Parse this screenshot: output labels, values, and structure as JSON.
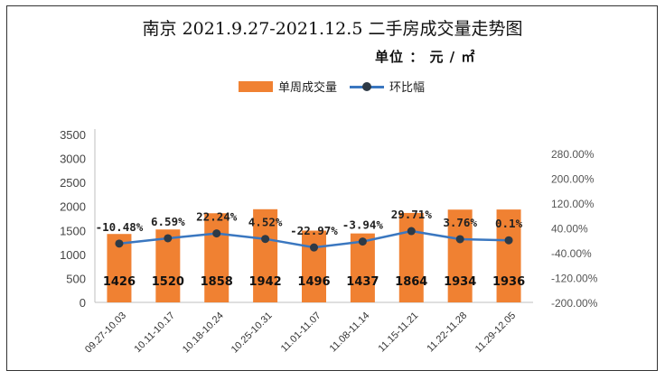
{
  "chart_data": {
    "type": "bar",
    "title": "南京 2021.9.27-2021.12.5 二手房成交量走势图",
    "unit_label": "单位 ： 元 / ㎡",
    "categories": [
      "09.27-10.03",
      "10.11-10.17",
      "10.18-10.24",
      "10.25-10.31",
      "11.01-11.07",
      "11.08-11.14",
      "11.15-11.21",
      "11.22-11.28",
      "11.29-12.05"
    ],
    "series": [
      {
        "name": "单周成交量",
        "type": "bar",
        "color": "#f08132",
        "values": [
          1426,
          1520,
          1858,
          1942,
          1496,
          1437,
          1864,
          1934,
          1936
        ]
      },
      {
        "name": "环比幅",
        "type": "line",
        "color": "#3a77c0",
        "marker_color": "#2e3a46",
        "values": [
          -10.48,
          6.59,
          22.24,
          4.52,
          -22.97,
          -3.94,
          29.71,
          3.76,
          0.1
        ],
        "labels": [
          "-10.48%",
          "6.59%",
          "22.24%",
          "4.52%",
          "-22.97%",
          "-3.94%",
          "29.71%",
          "3.76%",
          "0.1%"
        ]
      }
    ],
    "left_axis": {
      "ylim": [
        0,
        3500
      ],
      "ticks": [
        "0",
        "500",
        "1000",
        "1500",
        "2000",
        "2500",
        "3000",
        "3500"
      ]
    },
    "right_axis": {
      "ylim": [
        -200,
        280
      ],
      "ticks": [
        "-200.00%",
        "-120.00%",
        "-40.00%",
        "40.00%",
        "120.00%",
        "200.00%",
        "280.00%"
      ]
    },
    "legend": [
      "单周成交量",
      "环比幅"
    ],
    "legend_position": "top"
  }
}
